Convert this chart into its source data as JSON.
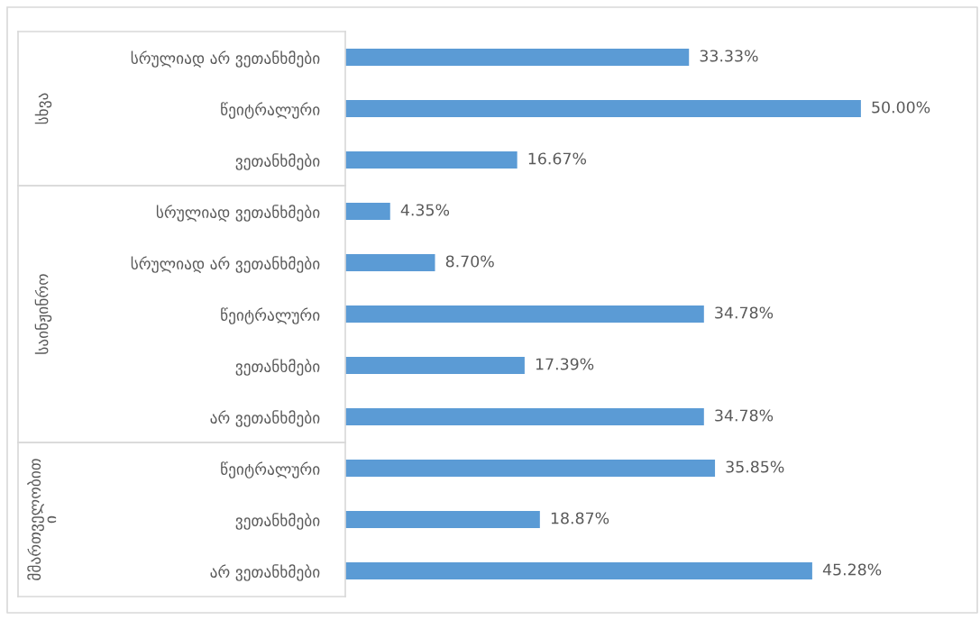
{
  "chart_data": [
    {
      "type": "bar",
      "orientation": "horizontal",
      "ylabel": "სხვა",
      "categories": [
        "სრულიად არ ვეთანხმები",
        "წეიტრალური",
        "ვეთანხმები"
      ],
      "values": [
        33.33,
        50.0,
        16.67
      ],
      "color": "#5b9bd5",
      "value_labels": [
        "33.33%",
        "50.00%",
        "16.67%"
      ]
    },
    {
      "type": "bar",
      "orientation": "horizontal",
      "ylabel": "საინჟინრო",
      "categories": [
        "სრულიად ვეთანხმები",
        "სრულიად არ ვეთანხმები",
        "წეიტრალური",
        "ვეთანხმები",
        "არ ვეთანხმები"
      ],
      "values": [
        4.35,
        8.7,
        34.78,
        17.39,
        34.78
      ],
      "color": "#5b9bd5",
      "value_labels": [
        "4.35%",
        "8.70%",
        "34.78%",
        "17.39%",
        "34.78%"
      ]
    },
    {
      "type": "bar",
      "orientation": "horizontal",
      "ylabel": "მმართველობით\nი",
      "categories": [
        "წეიტრალური",
        "ვეთანხმები",
        "არ ვეთანხმები"
      ],
      "values": [
        35.85,
        18.87,
        45.28
      ],
      "color": "#5b9bd5",
      "value_labels": [
        "35.85%",
        "18.87%",
        "45.28%"
      ]
    }
  ]
}
